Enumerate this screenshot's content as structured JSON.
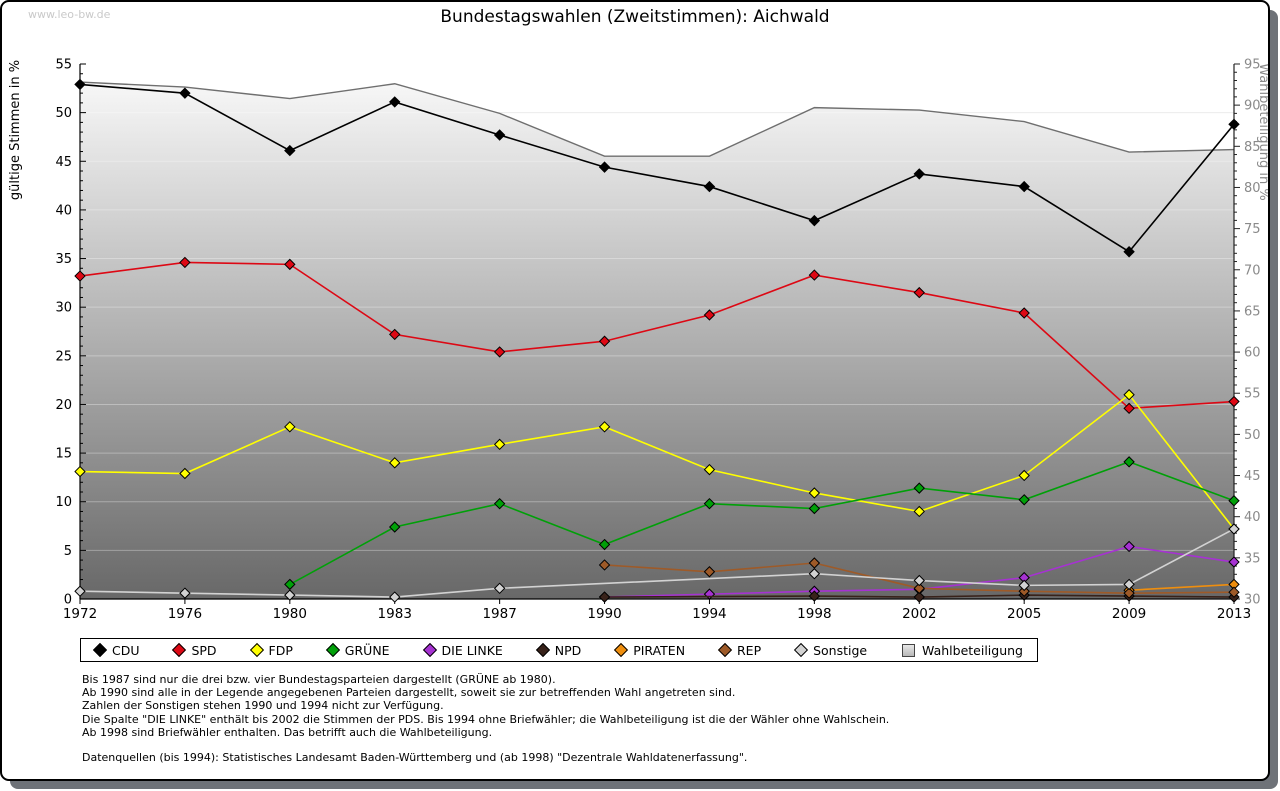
{
  "watermark": "www.leo-bw.de",
  "title": "Bundestagswahlen (Zweitstimmen): Aichwald",
  "chart_data": {
    "type": "line",
    "categories": [
      "1972",
      "1976",
      "1980",
      "1983",
      "1987",
      "1990",
      "1994",
      "1998",
      "2002",
      "2005",
      "2009",
      "2013"
    ],
    "left_axis": {
      "label": "gültige Stimmen in %",
      "min": 0,
      "max": 55,
      "major_step": 5,
      "minor_step": 1
    },
    "right_axis": {
      "label": "Wahlbeteiligung in %",
      "min": 30,
      "max": 95,
      "major_step": 5,
      "minor_step": 1
    },
    "grid": "horizontal-majors",
    "legend_position": "bottom",
    "area_gradient": [
      "#fcfcfc",
      "#686868"
    ],
    "series": [
      {
        "name": "CDU",
        "color": "#000000",
        "axis": "left",
        "marker": "diamond",
        "values": [
          52.9,
          52.0,
          46.1,
          51.1,
          47.7,
          44.4,
          42.4,
          38.9,
          43.7,
          42.4,
          35.7,
          48.8
        ]
      },
      {
        "name": "SPD",
        "color": "#dd0814",
        "axis": "left",
        "marker": "diamond",
        "values": [
          33.2,
          34.6,
          34.4,
          27.2,
          25.4,
          26.5,
          29.2,
          33.3,
          31.5,
          29.4,
          19.6,
          20.3
        ]
      },
      {
        "name": "FDP",
        "color": "#ffff00",
        "axis": "left",
        "marker": "diamond",
        "values": [
          13.1,
          12.9,
          17.7,
          14.0,
          15.9,
          17.7,
          13.3,
          10.9,
          9.0,
          12.7,
          21.0,
          7.2
        ]
      },
      {
        "name": "GRÜNE",
        "color": "#00a008",
        "axis": "left",
        "marker": "diamond",
        "values": [
          null,
          null,
          1.5,
          7.4,
          9.8,
          5.6,
          9.8,
          9.3,
          11.4,
          10.2,
          14.1,
          10.1
        ]
      },
      {
        "name": "DIE LINKE",
        "color": "#a632d2",
        "axis": "left",
        "marker": "diamond",
        "values": [
          null,
          null,
          null,
          null,
          null,
          0.2,
          0.5,
          0.8,
          1.0,
          2.2,
          5.4,
          3.8
        ]
      },
      {
        "name": "NPD",
        "color": "#38221a",
        "axis": "left",
        "marker": "diamond",
        "values": [
          null,
          null,
          null,
          null,
          null,
          0.2,
          null,
          0.3,
          0.2,
          0.4,
          0.3,
          0.2
        ]
      },
      {
        "name": "PIRATEN",
        "color": "#ef8e0e",
        "axis": "left",
        "marker": "diamond",
        "values": [
          null,
          null,
          null,
          null,
          null,
          null,
          null,
          null,
          null,
          null,
          0.9,
          1.5
        ]
      },
      {
        "name": "REP",
        "color": "#9e5a28",
        "axis": "left",
        "marker": "diamond",
        "values": [
          null,
          null,
          null,
          null,
          null,
          3.5,
          2.8,
          3.7,
          1.1,
          0.8,
          0.6,
          0.7
        ]
      },
      {
        "name": "Sonstige",
        "color": "#d2d2d2",
        "axis": "left",
        "marker": "diamond",
        "values": [
          0.8,
          0.6,
          0.4,
          0.2,
          1.1,
          null,
          null,
          2.6,
          1.9,
          1.4,
          1.5,
          7.2
        ]
      },
      {
        "name": "Wahlbeteiligung",
        "color": "#6f6f6f",
        "axis": "right",
        "marker": "square",
        "style": "area",
        "values": [
          92.8,
          92.2,
          90.8,
          92.6,
          89.0,
          83.8,
          83.8,
          89.7,
          89.4,
          88.0,
          84.3,
          84.6
        ]
      }
    ]
  },
  "notes": [
    "Bis 1987 sind nur die drei bzw. vier Bundestagsparteien dargestellt (GRÜNE ab 1980).",
    "Ab 1990 sind alle in der Legende angegebenen Parteien dargestellt, soweit sie zur betreffenden Wahl angetreten sind.",
    "Zahlen der Sonstigen stehen 1990 und 1994 nicht zur Verfügung.",
    "Die Spalte \"DIE LINKE\" enthält bis 2002 die Stimmen der PDS. Bis 1994 ohne Briefwähler; die Wahlbeteiligung ist die der Wähler ohne Wahlschein.",
    "Ab 1998 sind Briefwähler enthalten. Das betrifft auch die Wahlbeteiligung."
  ],
  "source": "Datenquellen (bis 1994): Statistisches Landesamt Baden-Württemberg und (ab 1998) \"Dezentrale Wahldatenerfassung\"."
}
